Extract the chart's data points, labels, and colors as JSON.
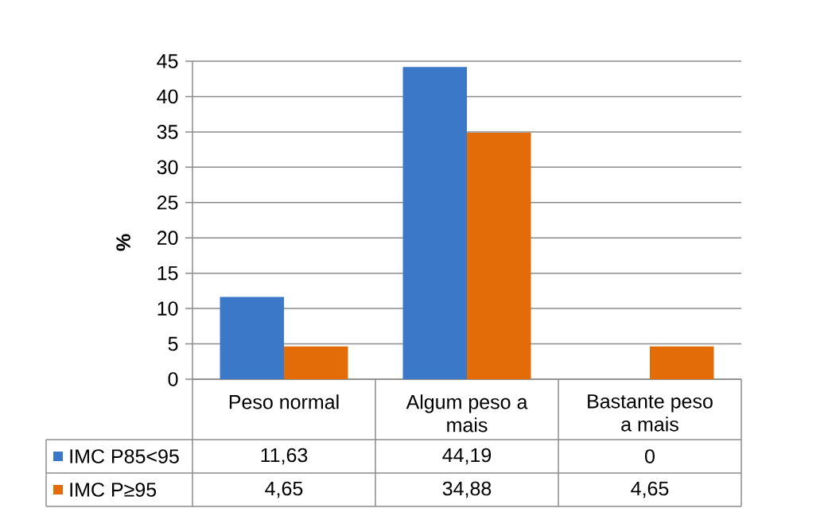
{
  "chart_data": {
    "type": "bar",
    "categories": [
      "Peso normal",
      "Algum peso a mais",
      "Bastante peso a mais"
    ],
    "series": [
      {
        "name": "IMC P85<95",
        "color": "#3b78c8",
        "values": [
          11.63,
          44.19,
          0
        ],
        "value_labels": [
          "11,63",
          "44,19",
          "0"
        ]
      },
      {
        "name": "IMC P≥95",
        "color": "#e36c09",
        "values": [
          4.65,
          34.88,
          4.65
        ],
        "value_labels": [
          "4,65",
          "34,88",
          "4,65"
        ]
      }
    ],
    "ylabel": "%",
    "ylim": [
      0,
      45
    ],
    "yticks": [
      0,
      5,
      10,
      15,
      20,
      25,
      30,
      35,
      40,
      45
    ],
    "grid": "y",
    "legend": "bottom left"
  }
}
